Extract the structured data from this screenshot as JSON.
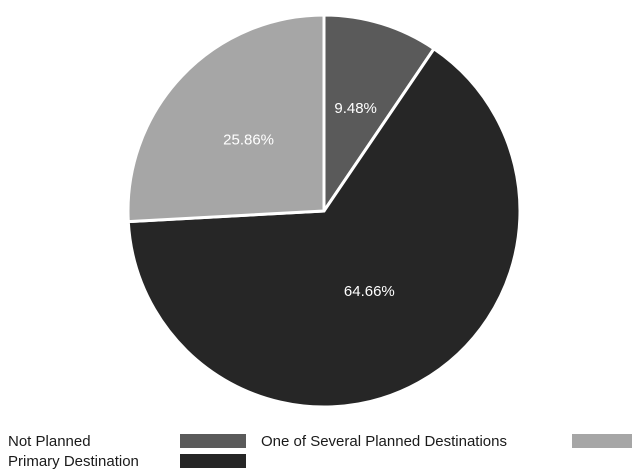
{
  "chart_data": {
    "type": "pie",
    "title": "",
    "start_angle_deg": 0,
    "direction": "clockwise",
    "explode_gap": "small white separation between slices",
    "slices": [
      {
        "label": "Not Planned",
        "value": 9.48,
        "display": "9.48%",
        "color": "#5a5a5a"
      },
      {
        "label": "Primary Destination",
        "value": 64.66,
        "display": "64.66%",
        "color": "#262626"
      },
      {
        "label": "One of Several Planned Destinations",
        "value": 25.86,
        "display": "25.86%",
        "color": "#a6a6a6"
      }
    ],
    "legend": {
      "placement": "bottom",
      "entries": [
        {
          "label": "Not Planned",
          "color": "#5a5a5a"
        },
        {
          "label": "One of Several Planned Destinations",
          "color": "#a6a6a6"
        },
        {
          "label": "Primary Destination",
          "color": "#262626"
        }
      ]
    }
  }
}
